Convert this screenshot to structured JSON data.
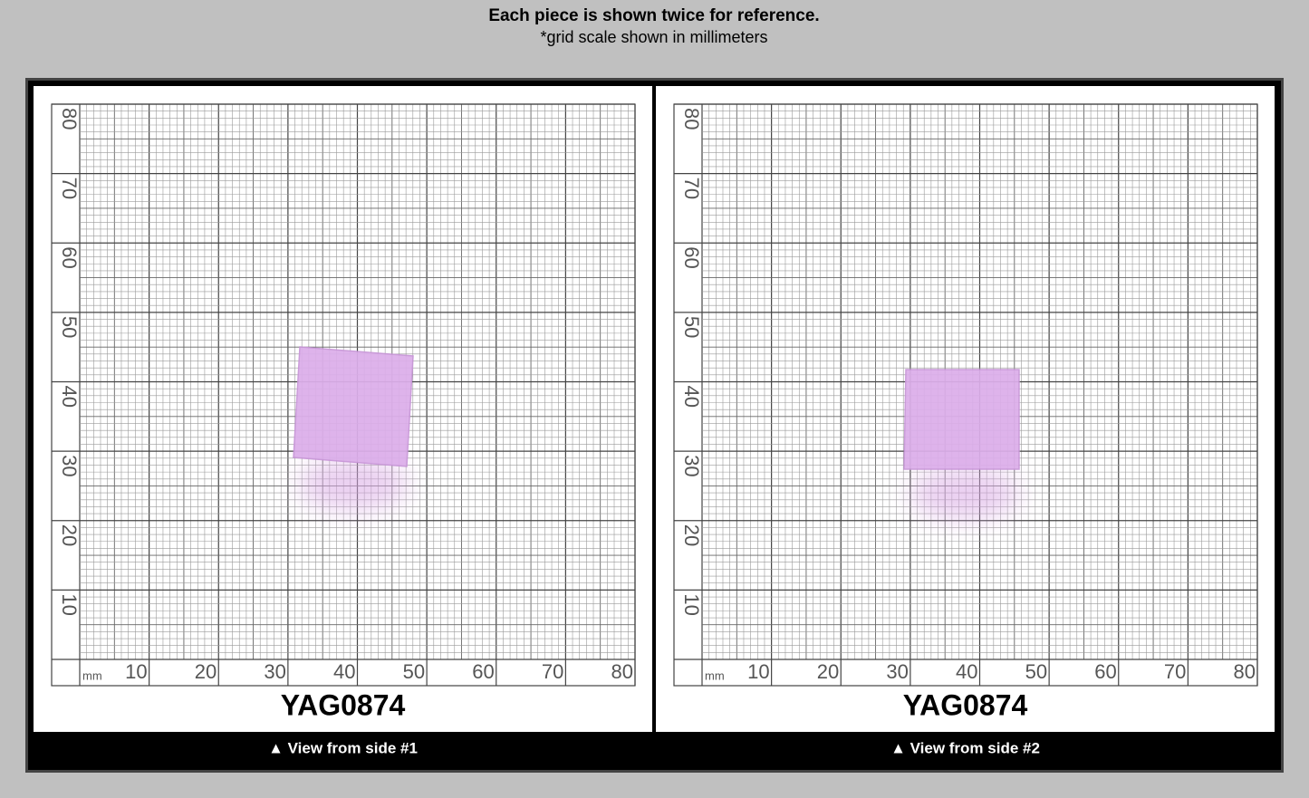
{
  "header": {
    "title": "Each piece is shown twice for reference.",
    "subtitle": "*grid scale shown in millimeters"
  },
  "panels": [
    {
      "unit": "mm",
      "x_ticks": [
        10,
        20,
        30,
        40,
        50,
        60,
        70,
        80
      ],
      "y_ticks": [
        10,
        20,
        30,
        40,
        50,
        60,
        70,
        80
      ],
      "item": "YAG0874",
      "caption": "▲ View from side #1"
    },
    {
      "unit": "mm",
      "x_ticks": [
        10,
        20,
        30,
        40,
        50,
        60,
        70,
        80
      ],
      "y_ticks": [
        10,
        20,
        30,
        40,
        50,
        60,
        70,
        80
      ],
      "item": "YAG0874",
      "caption": "▲ View from side #2"
    }
  ]
}
